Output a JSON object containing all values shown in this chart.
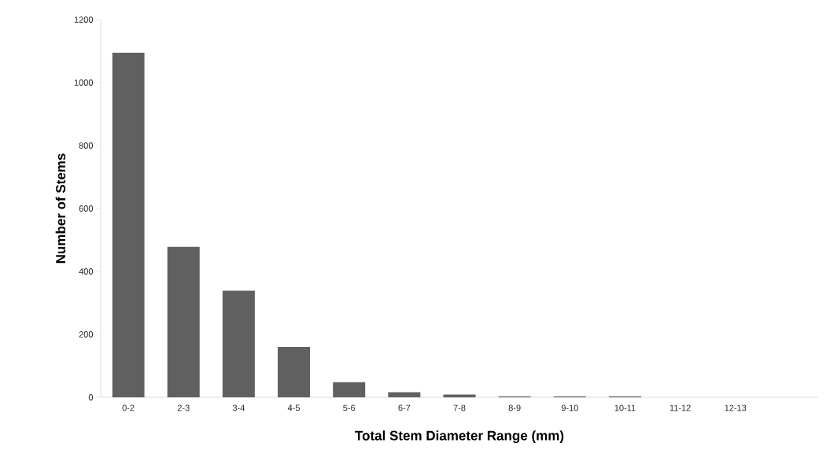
{
  "chart_data": {
    "type": "bar",
    "xlabel": "Total Stem Diameter Range (mm)",
    "ylabel": "Number of Stems",
    "categories": [
      "0-2",
      "2-3",
      "3-4",
      "4-5",
      "5-6",
      "6-7",
      "7-8",
      "8-9",
      "9-10",
      "10-11",
      "11-12",
      "12-13",
      null
    ],
    "values": [
      1095,
      478,
      339,
      160,
      48,
      16,
      9,
      3,
      3,
      3,
      0,
      0,
      null
    ],
    "color": "#606060",
    "ylim": [
      0,
      1200
    ],
    "yticks": [
      0,
      200,
      400,
      600,
      800,
      1000,
      1200
    ],
    "grid": false
  }
}
